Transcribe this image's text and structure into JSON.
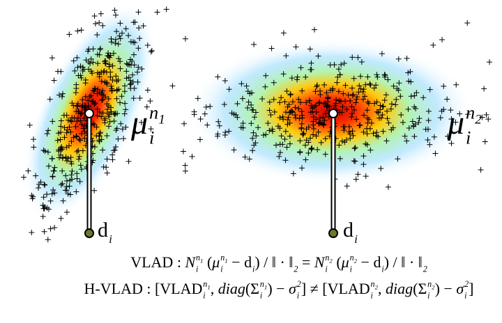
{
  "clusters": [
    {
      "mean_label": [
        {
          "t": "μ",
          "s": "i"
        },
        {
          "t": "n",
          "s": "sup"
        },
        {
          "t": "1",
          "s": "supsub"
        },
        {
          "t": "i",
          "s": "sub"
        }
      ],
      "descriptor_label": [
        {
          "t": "d",
          "s": "n"
        },
        {
          "t": "i",
          "s": "sub"
        }
      ]
    },
    {
      "mean_label": [
        {
          "t": "μ",
          "s": "i"
        },
        {
          "t": "n",
          "s": "sup"
        },
        {
          "t": "2",
          "s": "supsub"
        },
        {
          "t": "i",
          "s": "sub"
        }
      ],
      "descriptor_label": [
        {
          "t": "d",
          "s": "n"
        },
        {
          "t": "i",
          "s": "sub"
        }
      ]
    }
  ],
  "formulas": {
    "vlad": [
      {
        "t": "VLAD : ",
        "s": "n"
      },
      {
        "t": "N",
        "s": "i"
      },
      {
        "t": "n",
        "s": "sup"
      },
      {
        "t": "1",
        "s": "supsub"
      },
      {
        "t": "i",
        "s": "sub"
      },
      {
        "t": " (",
        "s": "n"
      },
      {
        "t": "μ",
        "s": "i"
      },
      {
        "t": "n",
        "s": "sup"
      },
      {
        "t": "1",
        "s": "supsub"
      },
      {
        "t": "i",
        "s": "sub"
      },
      {
        "t": " − d",
        "s": "n"
      },
      {
        "t": "i",
        "s": "sub"
      },
      {
        "t": ") / ‖ · ‖",
        "s": "n"
      },
      {
        "t": "2",
        "s": "sub"
      },
      {
        "t": " = ",
        "s": "n"
      },
      {
        "t": "N",
        "s": "i"
      },
      {
        "t": "n",
        "s": "sup"
      },
      {
        "t": "2",
        "s": "supsub"
      },
      {
        "t": "i",
        "s": "sub"
      },
      {
        "t": " (",
        "s": "n"
      },
      {
        "t": "μ",
        "s": "i"
      },
      {
        "t": "n",
        "s": "sup"
      },
      {
        "t": "2",
        "s": "supsub"
      },
      {
        "t": "i",
        "s": "sub"
      },
      {
        "t": " − d",
        "s": "n"
      },
      {
        "t": "i",
        "s": "sub"
      },
      {
        "t": ") / ‖ · ‖",
        "s": "n"
      },
      {
        "t": "2",
        "s": "sub"
      }
    ],
    "hvlad": [
      {
        "t": "H-VLAD : [VLAD",
        "s": "n"
      },
      {
        "t": "n",
        "s": "sup"
      },
      {
        "t": "1",
        "s": "supsub"
      },
      {
        "t": "i",
        "s": "sub"
      },
      {
        "t": ", ",
        "s": "n"
      },
      {
        "t": "diag",
        "s": "i"
      },
      {
        "t": "(Σ",
        "s": "n"
      },
      {
        "t": "n",
        "s": "sup"
      },
      {
        "t": "1",
        "s": "supsub"
      },
      {
        "t": "i",
        "s": "sub"
      },
      {
        "t": ") − ",
        "s": "n"
      },
      {
        "t": "σ",
        "s": "i"
      },
      {
        "t": "2",
        "s": "sup"
      },
      {
        "t": "i",
        "s": "sub"
      },
      {
        "t": "] ≠ [VLAD",
        "s": "n"
      },
      {
        "t": "n",
        "s": "sup"
      },
      {
        "t": "2",
        "s": "supsub"
      },
      {
        "t": "i",
        "s": "sub"
      },
      {
        "t": ", ",
        "s": "n"
      },
      {
        "t": "diag",
        "s": "i"
      },
      {
        "t": "(Σ",
        "s": "n"
      },
      {
        "t": "n",
        "s": "sup"
      },
      {
        "t": "2",
        "s": "supsub"
      },
      {
        "t": "i",
        "s": "sub"
      },
      {
        "t": ") − ",
        "s": "n"
      },
      {
        "t": "σ",
        "s": "i"
      },
      {
        "t": "2",
        "s": "sup"
      },
      {
        "t": "i",
        "s": "sub"
      },
      {
        "t": "]",
        "s": "n"
      }
    ]
  }
}
